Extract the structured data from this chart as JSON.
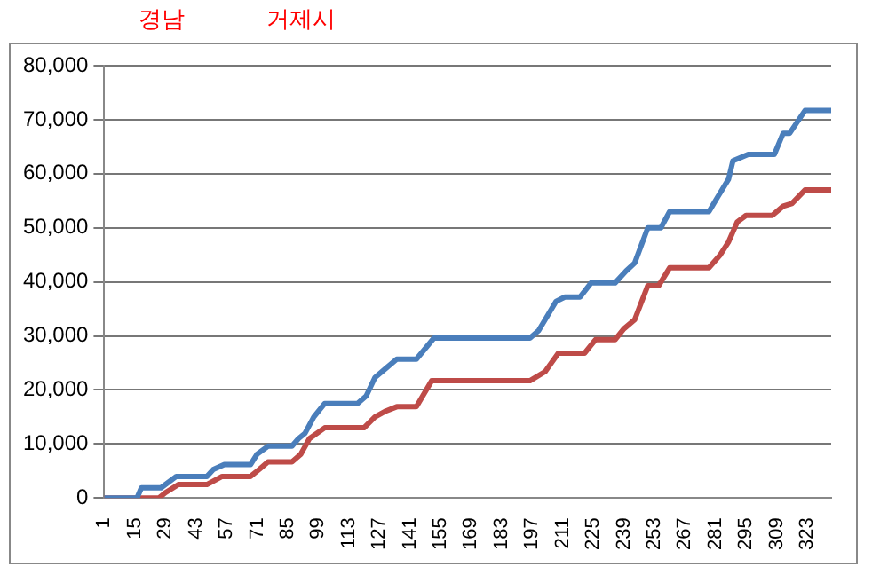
{
  "chart_data": {
    "type": "line",
    "annotations": [
      "경남",
      "거제시"
    ],
    "xlim": [
      1,
      334
    ],
    "xticks": [
      1,
      15,
      29,
      43,
      57,
      71,
      85,
      99,
      113,
      127,
      141,
      155,
      169,
      183,
      197,
      211,
      225,
      239,
      253,
      267,
      281,
      295,
      309,
      323
    ],
    "ylim": [
      0,
      80000
    ],
    "yticks": [
      {
        "value": 0,
        "label": "0"
      },
      {
        "value": 10000,
        "label": "10,000"
      },
      {
        "value": 20000,
        "label": "20,000"
      },
      {
        "value": 30000,
        "label": "30,000"
      },
      {
        "value": 40000,
        "label": "40,000"
      },
      {
        "value": 50000,
        "label": "50,000"
      },
      {
        "value": 60000,
        "label": "60,000"
      },
      {
        "value": 70000,
        "label": "70,000"
      },
      {
        "value": 80000,
        "label": "80,000"
      }
    ],
    "grid": "y",
    "legend": false,
    "marker": "none",
    "line_style": "solid",
    "series": [
      {
        "color": "#4a7ebb",
        "x": [
          1,
          16,
          18,
          27,
          34,
          48,
          51,
          56,
          68,
          71,
          76,
          87,
          90,
          93,
          97,
          102,
          117,
          121,
          125,
          130,
          135,
          144,
          152,
          196,
          200,
          208,
          212,
          219,
          224,
          235,
          240,
          244,
          250,
          256,
          260,
          278,
          282,
          287,
          289,
          296,
          308,
          312,
          315,
          322,
          334
        ],
        "values": [
          0,
          0,
          1900,
          1900,
          4000,
          4000,
          5300,
          6200,
          6200,
          8100,
          9600,
          9600,
          11000,
          12000,
          15000,
          17500,
          17500,
          18900,
          22300,
          24000,
          25700,
          25700,
          29600,
          29600,
          31000,
          36400,
          37200,
          37200,
          39800,
          39800,
          42000,
          43500,
          50000,
          50000,
          53000,
          53000,
          55700,
          59000,
          62400,
          63600,
          63600,
          67500,
          67500,
          71700,
          71700
        ]
      },
      {
        "color": "#be4b48",
        "x": [
          1,
          26,
          29,
          35,
          48,
          55,
          68,
          72,
          76,
          87,
          91,
          95,
          102,
          120,
          125,
          130,
          135,
          144,
          151,
          196,
          203,
          209,
          221,
          226,
          235,
          239,
          244,
          250,
          255,
          260,
          278,
          283,
          287,
          291,
          295,
          307,
          312,
          316,
          322,
          334
        ],
        "values": [
          0,
          0,
          1000,
          2500,
          2500,
          4000,
          4000,
          5300,
          6700,
          6700,
          8100,
          11000,
          13000,
          13000,
          15000,
          16100,
          16900,
          16900,
          21700,
          21700,
          23400,
          26800,
          26800,
          29300,
          29300,
          31300,
          33000,
          39300,
          39300,
          42600,
          42600,
          44900,
          47400,
          51100,
          52300,
          52300,
          54000,
          54500,
          57000,
          57000
        ]
      }
    ]
  }
}
